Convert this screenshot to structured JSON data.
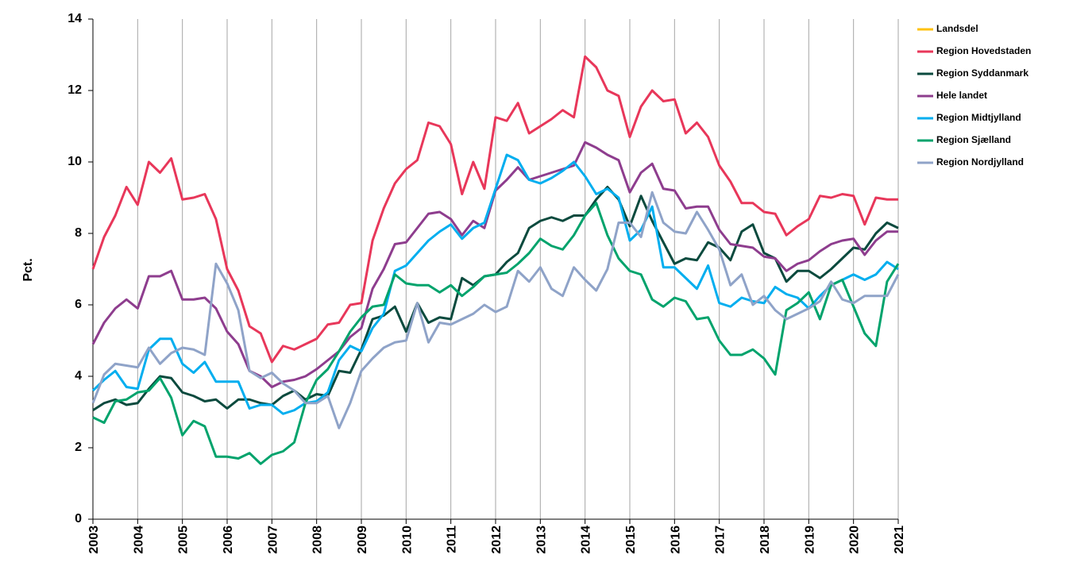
{
  "chart_data": {
    "type": "line",
    "y_label": "Pct.",
    "x": [
      2003,
      2003.25,
      2003.5,
      2003.75,
      2004,
      2004.25,
      2004.5,
      2004.75,
      2005,
      2005.25,
      2005.5,
      2005.75,
      2006,
      2006.25,
      2006.5,
      2006.75,
      2007,
      2007.25,
      2007.5,
      2007.75,
      2008,
      2008.25,
      2008.5,
      2008.75,
      2009,
      2009.25,
      2009.5,
      2009.75,
      2010,
      2010.25,
      2010.5,
      2010.75,
      2011,
      2011.25,
      2011.5,
      2011.75,
      2012,
      2012.25,
      2012.5,
      2012.75,
      2013,
      2013.25,
      2013.5,
      2013.75,
      2014,
      2014.25,
      2014.5,
      2014.75,
      2015,
      2015.25,
      2015.5,
      2015.75,
      2016,
      2016.25,
      2016.5,
      2016.75,
      2017,
      2017.25,
      2017.5,
      2017.75,
      2018,
      2018.25,
      2018.5,
      2018.75,
      2019,
      2019.25,
      2019.5,
      2019.75,
      2020,
      2020.25,
      2020.5,
      2020.75,
      2021
    ],
    "xlim": [
      2003,
      2021
    ],
    "xticks": [
      2003,
      2004,
      2005,
      2006,
      2007,
      2008,
      2009,
      2010,
      2011,
      2012,
      2013,
      2014,
      2015,
      2016,
      2017,
      2018,
      2019,
      2020,
      2021
    ],
    "ylim": [
      0,
      14
    ],
    "yticks": [
      0,
      2,
      4,
      6,
      8,
      10,
      12,
      14
    ],
    "grid": "x",
    "legend": "right",
    "series": [
      {
        "name": "Landsdel",
        "color": "#ffc20e",
        "values": [
          null,
          null,
          null,
          null,
          null,
          null,
          null,
          null,
          null,
          null,
          null,
          null,
          null,
          null,
          null,
          null,
          null,
          null,
          null,
          null,
          null,
          null,
          null,
          null,
          null,
          null,
          null,
          null,
          null,
          null,
          null,
          null,
          null,
          null,
          null,
          null,
          null,
          null,
          null,
          null,
          null,
          null,
          null,
          null,
          null,
          null,
          null,
          null,
          null,
          null,
          null,
          null,
          null,
          null,
          null,
          null,
          null,
          null,
          null,
          null,
          null,
          null,
          null,
          null,
          null,
          null,
          null,
          null,
          null,
          null,
          null,
          null,
          null
        ]
      },
      {
        "name": "Region Hovedstaden",
        "color": "#e8375a",
        "values": [
          7.0,
          7.9,
          8.5,
          9.3,
          8.8,
          10.0,
          9.7,
          10.1,
          8.95,
          9.0,
          9.1,
          8.4,
          7.0,
          6.4,
          5.4,
          5.2,
          4.4,
          4.85,
          4.75,
          4.9,
          5.05,
          5.45,
          5.5,
          6.0,
          6.05,
          7.8,
          8.7,
          9.4,
          9.8,
          10.05,
          11.1,
          11.0,
          10.5,
          9.1,
          10.0,
          9.25,
          11.25,
          11.15,
          11.65,
          10.8,
          11.0,
          11.2,
          11.45,
          11.25,
          12.95,
          12.65,
          12.0,
          11.85,
          10.7,
          11.55,
          12.0,
          11.7,
          11.75,
          10.8,
          11.1,
          10.7,
          9.9,
          9.45,
          8.85,
          8.85,
          8.6,
          8.55,
          7.95,
          8.2,
          8.4,
          9.05,
          9.0,
          9.1,
          9.05,
          8.25,
          9.0,
          8.95,
          8.95
        ]
      },
      {
        "name": "Region Syddanmark",
        "color": "#0b4a3e",
        "values": [
          3.05,
          3.25,
          3.35,
          3.2,
          3.25,
          3.65,
          4.0,
          3.95,
          3.55,
          3.45,
          3.3,
          3.35,
          3.1,
          3.35,
          3.35,
          3.25,
          3.2,
          3.45,
          3.6,
          3.35,
          3.5,
          3.45,
          4.15,
          4.1,
          4.75,
          5.6,
          5.7,
          5.95,
          5.25,
          6.05,
          5.5,
          5.65,
          5.6,
          6.75,
          6.55,
          6.8,
          6.85,
          7.2,
          7.45,
          8.15,
          8.35,
          8.45,
          8.35,
          8.5,
          8.5,
          8.95,
          9.3,
          8.95,
          8.2,
          9.05,
          8.35,
          7.75,
          7.15,
          7.3,
          7.25,
          7.75,
          7.6,
          7.25,
          8.05,
          8.25,
          7.45,
          7.3,
          6.65,
          6.95,
          6.95,
          6.75,
          7.0,
          7.3,
          7.6,
          7.55,
          8.0,
          8.3,
          8.15
        ]
      },
      {
        "name": "Hele landet",
        "color": "#8e3d8e",
        "values": [
          4.9,
          5.5,
          5.9,
          6.15,
          5.9,
          6.8,
          6.8,
          6.95,
          6.15,
          6.15,
          6.2,
          5.9,
          5.25,
          4.9,
          4.15,
          4.0,
          3.7,
          3.85,
          3.9,
          4.0,
          4.2,
          4.45,
          4.7,
          5.1,
          5.35,
          6.45,
          7.0,
          7.7,
          7.75,
          8.15,
          8.55,
          8.6,
          8.4,
          7.95,
          8.35,
          8.15,
          9.2,
          9.5,
          9.85,
          9.5,
          9.6,
          9.7,
          9.8,
          9.9,
          10.55,
          10.4,
          10.2,
          10.05,
          9.15,
          9.7,
          9.95,
          9.25,
          9.2,
          8.7,
          8.75,
          8.75,
          8.1,
          7.7,
          7.65,
          7.6,
          7.35,
          7.3,
          6.95,
          7.15,
          7.25,
          7.5,
          7.7,
          7.8,
          7.85,
          7.4,
          7.8,
          8.05,
          8.05
        ]
      },
      {
        "name": "Region Midtjylland",
        "color": "#00aeef",
        "values": [
          3.6,
          3.9,
          4.15,
          3.7,
          3.65,
          4.75,
          5.05,
          5.05,
          4.35,
          4.1,
          4.4,
          3.85,
          3.85,
          3.85,
          3.1,
          3.2,
          3.2,
          2.95,
          3.05,
          3.25,
          3.3,
          3.55,
          4.45,
          4.85,
          4.7,
          5.35,
          5.75,
          6.95,
          7.1,
          7.45,
          7.8,
          8.05,
          8.25,
          7.85,
          8.15,
          8.3,
          9.25,
          10.2,
          10.05,
          9.5,
          9.4,
          9.55,
          9.75,
          10.0,
          9.6,
          9.1,
          9.25,
          9.0,
          7.8,
          8.1,
          8.75,
          7.05,
          7.05,
          6.75,
          6.45,
          7.1,
          6.05,
          5.95,
          6.2,
          6.1,
          6.05,
          6.5,
          6.3,
          6.2,
          5.9,
          6.25,
          6.55,
          6.7,
          6.85,
          6.7,
          6.85,
          7.2,
          7.0
        ]
      },
      {
        "name": "Region Sjælland",
        "color": "#00a36c",
        "values": [
          2.85,
          2.7,
          3.3,
          3.35,
          3.55,
          3.6,
          3.95,
          3.4,
          2.35,
          2.75,
          2.6,
          1.75,
          1.75,
          1.7,
          1.85,
          1.55,
          1.8,
          1.9,
          2.15,
          3.25,
          3.9,
          4.2,
          4.7,
          5.25,
          5.65,
          5.95,
          6.0,
          6.85,
          6.6,
          6.55,
          6.55,
          6.35,
          6.55,
          6.25,
          6.5,
          6.8,
          6.85,
          6.9,
          7.15,
          7.45,
          7.85,
          7.65,
          7.55,
          7.95,
          8.5,
          8.85,
          7.95,
          7.3,
          6.95,
          6.85,
          6.15,
          5.95,
          6.2,
          6.1,
          5.6,
          5.65,
          5.0,
          4.6,
          4.6,
          4.75,
          4.5,
          4.05,
          5.85,
          6.05,
          6.35,
          5.6,
          6.55,
          6.7,
          5.95,
          5.2,
          4.85,
          6.65,
          7.15
        ]
      },
      {
        "name": "Region Nordjylland",
        "color": "#8fa3c8",
        "values": [
          3.25,
          4.05,
          4.35,
          4.3,
          4.25,
          4.8,
          4.35,
          4.65,
          4.8,
          4.75,
          4.6,
          7.15,
          6.6,
          5.85,
          4.15,
          3.95,
          4.1,
          3.8,
          3.6,
          3.25,
          3.25,
          3.45,
          2.55,
          3.25,
          4.15,
          4.5,
          4.8,
          4.95,
          5.0,
          6.05,
          4.95,
          5.5,
          5.45,
          5.6,
          5.75,
          6.0,
          5.8,
          5.95,
          6.95,
          6.65,
          7.05,
          6.45,
          6.25,
          7.05,
          6.7,
          6.4,
          7.0,
          8.3,
          8.3,
          7.9,
          9.15,
          8.3,
          8.05,
          8.0,
          8.6,
          8.1,
          7.55,
          6.55,
          6.85,
          6.0,
          6.25,
          5.85,
          5.6,
          5.75,
          5.9,
          6.1,
          6.65,
          6.15,
          6.05,
          6.25,
          6.25,
          6.25,
          6.85
        ]
      }
    ]
  }
}
